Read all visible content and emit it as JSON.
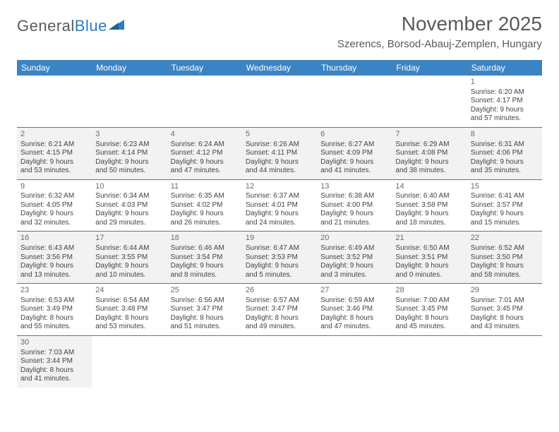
{
  "logo": {
    "part1": "General",
    "part2": "Blue",
    "shape_color": "#2d7cc1"
  },
  "title": "November 2025",
  "location": "Szerencs, Borsod-Abauj-Zemplen, Hungary",
  "weekdays": [
    "Sunday",
    "Monday",
    "Tuesday",
    "Wednesday",
    "Thursday",
    "Friday",
    "Saturday"
  ],
  "colors": {
    "header_bg": "#3b84c4",
    "header_fg": "#ffffff",
    "rule": "#3b7fb8",
    "shade": "#f2f2f2",
    "text": "#444444",
    "daynum": "#6b6b6b"
  },
  "blank_leading": 6,
  "days": [
    {
      "n": 1,
      "sunrise": "6:20 AM",
      "sunset": "4:17 PM",
      "dl1": "9 hours",
      "dl2": "and 57 minutes."
    },
    {
      "n": 2,
      "sunrise": "6:21 AM",
      "sunset": "4:15 PM",
      "dl1": "9 hours",
      "dl2": "and 53 minutes."
    },
    {
      "n": 3,
      "sunrise": "6:23 AM",
      "sunset": "4:14 PM",
      "dl1": "9 hours",
      "dl2": "and 50 minutes."
    },
    {
      "n": 4,
      "sunrise": "6:24 AM",
      "sunset": "4:12 PM",
      "dl1": "9 hours",
      "dl2": "and 47 minutes."
    },
    {
      "n": 5,
      "sunrise": "6:26 AM",
      "sunset": "4:11 PM",
      "dl1": "9 hours",
      "dl2": "and 44 minutes."
    },
    {
      "n": 6,
      "sunrise": "6:27 AM",
      "sunset": "4:09 PM",
      "dl1": "9 hours",
      "dl2": "and 41 minutes."
    },
    {
      "n": 7,
      "sunrise": "6:29 AM",
      "sunset": "4:08 PM",
      "dl1": "9 hours",
      "dl2": "and 38 minutes."
    },
    {
      "n": 8,
      "sunrise": "6:31 AM",
      "sunset": "4:06 PM",
      "dl1": "9 hours",
      "dl2": "and 35 minutes."
    },
    {
      "n": 9,
      "sunrise": "6:32 AM",
      "sunset": "4:05 PM",
      "dl1": "9 hours",
      "dl2": "and 32 minutes."
    },
    {
      "n": 10,
      "sunrise": "6:34 AM",
      "sunset": "4:03 PM",
      "dl1": "9 hours",
      "dl2": "and 29 minutes."
    },
    {
      "n": 11,
      "sunrise": "6:35 AM",
      "sunset": "4:02 PM",
      "dl1": "9 hours",
      "dl2": "and 26 minutes."
    },
    {
      "n": 12,
      "sunrise": "6:37 AM",
      "sunset": "4:01 PM",
      "dl1": "9 hours",
      "dl2": "and 24 minutes."
    },
    {
      "n": 13,
      "sunrise": "6:38 AM",
      "sunset": "4:00 PM",
      "dl1": "9 hours",
      "dl2": "and 21 minutes."
    },
    {
      "n": 14,
      "sunrise": "6:40 AM",
      "sunset": "3:58 PM",
      "dl1": "9 hours",
      "dl2": "and 18 minutes."
    },
    {
      "n": 15,
      "sunrise": "6:41 AM",
      "sunset": "3:57 PM",
      "dl1": "9 hours",
      "dl2": "and 15 minutes."
    },
    {
      "n": 16,
      "sunrise": "6:43 AM",
      "sunset": "3:56 PM",
      "dl1": "9 hours",
      "dl2": "and 13 minutes."
    },
    {
      "n": 17,
      "sunrise": "6:44 AM",
      "sunset": "3:55 PM",
      "dl1": "9 hours",
      "dl2": "and 10 minutes."
    },
    {
      "n": 18,
      "sunrise": "6:46 AM",
      "sunset": "3:54 PM",
      "dl1": "9 hours",
      "dl2": "and 8 minutes."
    },
    {
      "n": 19,
      "sunrise": "6:47 AM",
      "sunset": "3:53 PM",
      "dl1": "9 hours",
      "dl2": "and 5 minutes."
    },
    {
      "n": 20,
      "sunrise": "6:49 AM",
      "sunset": "3:52 PM",
      "dl1": "9 hours",
      "dl2": "and 3 minutes."
    },
    {
      "n": 21,
      "sunrise": "6:50 AM",
      "sunset": "3:51 PM",
      "dl1": "9 hours",
      "dl2": "and 0 minutes."
    },
    {
      "n": 22,
      "sunrise": "6:52 AM",
      "sunset": "3:50 PM",
      "dl1": "8 hours",
      "dl2": "and 58 minutes."
    },
    {
      "n": 23,
      "sunrise": "6:53 AM",
      "sunset": "3:49 PM",
      "dl1": "8 hours",
      "dl2": "and 55 minutes."
    },
    {
      "n": 24,
      "sunrise": "6:54 AM",
      "sunset": "3:48 PM",
      "dl1": "8 hours",
      "dl2": "and 53 minutes."
    },
    {
      "n": 25,
      "sunrise": "6:56 AM",
      "sunset": "3:47 PM",
      "dl1": "8 hours",
      "dl2": "and 51 minutes."
    },
    {
      "n": 26,
      "sunrise": "6:57 AM",
      "sunset": "3:47 PM",
      "dl1": "8 hours",
      "dl2": "and 49 minutes."
    },
    {
      "n": 27,
      "sunrise": "6:59 AM",
      "sunset": "3:46 PM",
      "dl1": "8 hours",
      "dl2": "and 47 minutes."
    },
    {
      "n": 28,
      "sunrise": "7:00 AM",
      "sunset": "3:45 PM",
      "dl1": "8 hours",
      "dl2": "and 45 minutes."
    },
    {
      "n": 29,
      "sunrise": "7:01 AM",
      "sunset": "3:45 PM",
      "dl1": "8 hours",
      "dl2": "and 43 minutes."
    },
    {
      "n": 30,
      "sunrise": "7:03 AM",
      "sunset": "3:44 PM",
      "dl1": "8 hours",
      "dl2": "and 41 minutes."
    }
  ],
  "labels": {
    "sunrise": "Sunrise:",
    "sunset": "Sunset:",
    "daylight": "Daylight:"
  }
}
